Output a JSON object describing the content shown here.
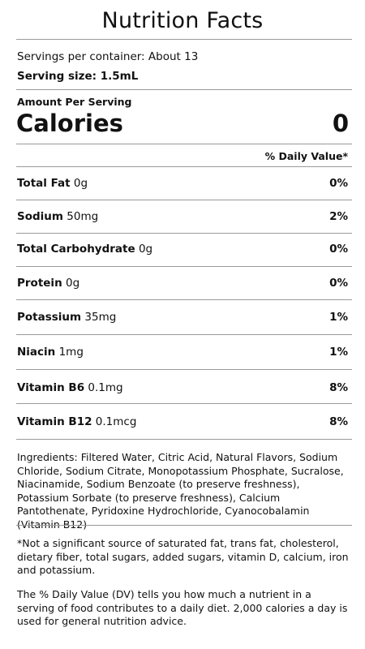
{
  "title": "Nutrition Facts",
  "servings_per_container": "Servings per container: About 13",
  "serving_size": "Serving size: 1.5mL",
  "amount_per_serving": "Amount Per Serving",
  "calories_label": "Calories",
  "calories_value": "0",
  "daily_value_header": "% Daily Value*",
  "nutrients": [
    {
      "name": "Total Fat",
      "amount": "0g",
      "dv": "0%"
    },
    {
      "name": "Sodium",
      "amount": "50mg",
      "dv": "2%"
    },
    {
      "name": "Total Carbohydrate",
      "amount": "0g",
      "dv": "0%"
    },
    {
      "name": "Protein",
      "amount": "0g",
      "dv": "0%"
    },
    {
      "name": "Potassium",
      "amount": "35mg",
      "dv": "1%"
    },
    {
      "name": "Niacin",
      "amount": "1mg",
      "dv": "1%"
    },
    {
      "name": "Vitamin B6",
      "amount": "0.1mg",
      "dv": "8%"
    },
    {
      "name": "Vitamin B12",
      "amount": "0.1mcg",
      "dv": "8%"
    }
  ],
  "ingredients": "Ingredients: Filtered Water, Citric Acid, Natural Flavors, Sodium Chloride, Sodium Citrate, Monopotassium Phosphate, Sucralose, Niacinamide, Sodium Benzoate (to preserve freshness), Potassium Sorbate  (to preserve freshness), Calcium Pantothenate, Pyridoxine Hydrochloride, Cyanocobalamin (Vitamin B12)",
  "footnote": "*Not a significant source of saturated fat, trans fat, cholesterol, dietary fiber, total sugars, added sugars, vitamin D, calcium, iron and potassium.",
  "dv_explanation": "The % Daily Value (DV) tells you how much a nutrient in a serving of food contributes to a daily diet. 2,000 calories a day is used for general nutrition advice."
}
